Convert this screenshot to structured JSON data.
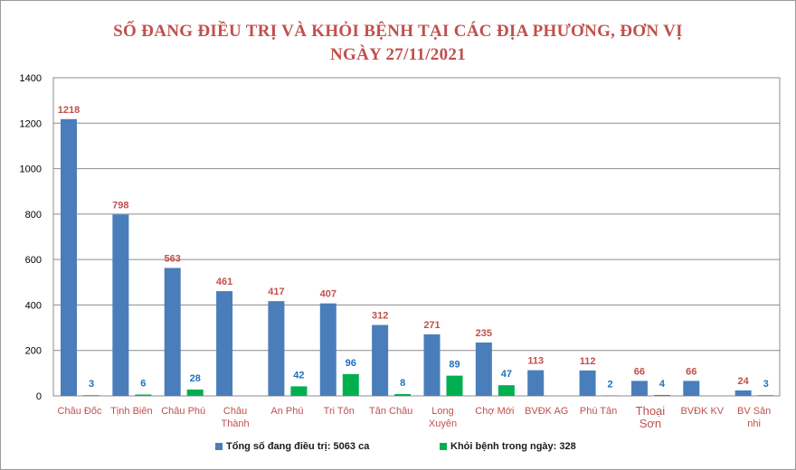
{
  "title_line1": "SỐ ĐANG ĐIỀU TRỊ VÀ KHỎI BỆNH TẠI CÁC ĐỊA PHƯƠNG, ĐƠN VỊ",
  "title_line2": "NGÀY 27/11/2021",
  "colors": {
    "series1": "#4a7ebb",
    "series2": "#00b050",
    "label1": "#c0504d",
    "label2": "#1f6fbf",
    "category": "#c0504d",
    "title": "#c0504d"
  },
  "legend": {
    "series1": "Tổng số  đang điều trị: 5063 ca",
    "series2": "Khỏi bệnh trong ngày: 328"
  },
  "chart_data": {
    "type": "bar",
    "title": "SỐ ĐANG ĐIỀU TRỊ VÀ KHỎI BỆNH TẠI CÁC ĐỊA PHƯƠNG, ĐƠN VỊ NGÀY 27/11/2021",
    "ylim": [
      0,
      1400
    ],
    "yticks": [
      "0",
      "200",
      "400",
      "600",
      "800",
      "1000",
      "1200",
      "1400"
    ],
    "categories": [
      [
        "Châu Đốc"
      ],
      [
        "Tịnh Biên"
      ],
      [
        "Châu Phú"
      ],
      [
        "Châu",
        "Thành"
      ],
      [
        "An Phú"
      ],
      [
        "Tri Tôn"
      ],
      [
        "Tân Châu"
      ],
      [
        "Long",
        "Xuyên"
      ],
      [
        "Chợ Mới"
      ],
      [
        "BVĐK AG"
      ],
      [
        "Phú Tân"
      ],
      [
        "Thoại",
        "Sơn"
      ],
      [
        "BVĐK KV"
      ],
      [
        "BV Sản",
        "nhi"
      ]
    ],
    "series": [
      {
        "name": "Tổng số  đang điều trị: 5063 ca",
        "values": [
          1218,
          798,
          563,
          461,
          417,
          407,
          312,
          271,
          235,
          113,
          112,
          66,
          66,
          24
        ],
        "labels": [
          "1218",
          "798",
          "563",
          "461",
          "417",
          "407",
          "312",
          "271",
          "235",
          "113",
          "112",
          "66",
          "66",
          "24"
        ]
      },
      {
        "name": "Khỏi bệnh trong ngày: 328",
        "values": [
          3,
          6,
          28,
          0,
          42,
          96,
          8,
          89,
          47,
          0,
          2,
          4,
          0,
          3
        ],
        "labels": [
          "3",
          "6",
          "28",
          "",
          "42",
          "96",
          "8",
          "89",
          "47",
          "",
          "2",
          "4",
          "",
          "3"
        ]
      }
    ]
  }
}
